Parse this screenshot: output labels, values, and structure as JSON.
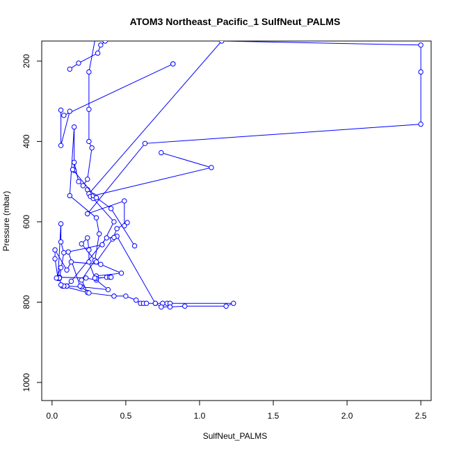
{
  "chart_data": {
    "type": "line",
    "title": "ATOM3 Northeast_Pacific_1 SulfNeut_PALMS",
    "xlabel": "SulfNeut_PALMS",
    "ylabel": "Pressure (mbar)",
    "xlim": [
      -0.07,
      2.57
    ],
    "ylim": [
      1045,
      150
    ],
    "y_reversed": true,
    "grid": false,
    "x_ticks": [
      0.0,
      0.5,
      1.0,
      1.5,
      2.0,
      2.5
    ],
    "x_tick_labels": [
      "0.0",
      "0.5",
      "1.0",
      "1.5",
      "2.0",
      "2.5"
    ],
    "y_ticks": [
      200,
      400,
      600,
      800,
      1000
    ],
    "y_tick_labels": [
      "200",
      "400",
      "600",
      "800",
      "1000"
    ],
    "series_color": "#0000ff",
    "series": [
      {
        "style": "line+open-circle",
        "points": [
          [
            0.3,
            130
          ],
          [
            0.25,
            227
          ],
          [
            0.25,
            320
          ],
          [
            0.25,
            400
          ],
          [
            0.27,
            416
          ],
          [
            0.24,
            494
          ],
          [
            0.21,
            510
          ],
          [
            0.18,
            500
          ],
          [
            0.15,
            452
          ],
          [
            0.15,
            472
          ],
          [
            0.15,
            364
          ],
          [
            0.12,
            535
          ],
          [
            0.3,
            590
          ],
          [
            0.32,
            630
          ],
          [
            0.29,
            696
          ],
          [
            0.2,
            745
          ],
          [
            0.24,
            776
          ],
          [
            0.07,
            760
          ],
          [
            0.1,
            760
          ],
          [
            0.2,
            762
          ],
          [
            0.38,
            769
          ],
          [
            0.3,
            745
          ],
          [
            0.23,
            740
          ],
          [
            0.05,
            738
          ],
          [
            0.05,
            741
          ],
          [
            0.08,
            677
          ],
          [
            0.06,
            650
          ],
          [
            0.06,
            605
          ],
          [
            0.04,
            741
          ],
          [
            0.02,
            692
          ],
          [
            0.02,
            670
          ],
          [
            0.1,
            720
          ],
          [
            0.13,
            700
          ],
          [
            0.33,
            706
          ],
          [
            0.47,
            728
          ],
          [
            0.3,
            735
          ],
          [
            0.3,
            741
          ],
          [
            0.37,
            738
          ],
          [
            0.39,
            738
          ],
          [
            0.4,
            738
          ],
          [
            0.29,
            740
          ],
          [
            0.25,
            700
          ],
          [
            0.25,
            670
          ],
          [
            0.24,
            640
          ],
          [
            0.2,
            655
          ],
          [
            0.3,
            700
          ],
          [
            0.41,
            643
          ],
          [
            0.44,
            617
          ],
          [
            0.51,
            602
          ],
          [
            0.49,
            610
          ],
          [
            0.49,
            548
          ],
          [
            0.24,
            580
          ],
          [
            0.63,
            405
          ],
          [
            2.5,
            357
          ],
          [
            2.5,
            227
          ],
          [
            2.5,
            160
          ],
          [
            1.15,
            150
          ],
          [
            0.25,
            530
          ],
          [
            0.26,
            537
          ],
          [
            0.24,
            520
          ],
          [
            0.28,
            542
          ],
          [
            0.42,
            600
          ],
          [
            0.34,
            657
          ],
          [
            0.11,
            675
          ],
          [
            0.19,
            760
          ],
          [
            0.25,
            777
          ],
          [
            0.42,
            785
          ],
          [
            0.42,
            785
          ],
          [
            0.5,
            785
          ],
          [
            0.57,
            795
          ],
          [
            0.6,
            803
          ],
          [
            0.62,
            803
          ],
          [
            0.64,
            803
          ],
          [
            0.7,
            803
          ],
          [
            0.75,
            803
          ],
          [
            0.78,
            803
          ],
          [
            0.8,
            803
          ],
          [
            1.23,
            803
          ],
          [
            1.18,
            810
          ],
          [
            0.9,
            810
          ],
          [
            0.8,
            812
          ],
          [
            0.74,
            812
          ],
          [
            0.7,
            803
          ],
          [
            0.44,
            636
          ],
          [
            0.42,
            639
          ],
          [
            0.37,
            640
          ],
          [
            0.13,
            748
          ],
          [
            0.1,
            760
          ],
          [
            0.08,
            760
          ],
          [
            0.06,
            757
          ],
          [
            0.05,
            740
          ],
          [
            0.03,
            740
          ],
          [
            0.06,
            714
          ]
        ]
      },
      {
        "style": "line+open-circle",
        "points": [
          [
            0.08,
            335
          ],
          [
            0.82,
            207
          ],
          [
            0.82,
            207
          ]
        ]
      },
      {
        "style": "line+open-circle",
        "points": [
          [
            0.12,
            220
          ],
          [
            0.18,
            205
          ],
          [
            0.31,
            180
          ],
          [
            0.33,
            160
          ],
          [
            0.36,
            150
          ]
        ]
      },
      {
        "style": "line+open-circle",
        "points": [
          [
            0.06,
            322
          ],
          [
            0.06,
            410
          ],
          [
            0.12,
            325
          ]
        ]
      },
      {
        "style": "line+open-circle",
        "points": [
          [
            0.74,
            428
          ],
          [
            1.08,
            465
          ],
          [
            0.28,
            535
          ]
        ]
      },
      {
        "style": "line+open-circle",
        "points": [
          [
            0.56,
            660
          ],
          [
            0.4,
            567
          ],
          [
            0.3,
            540
          ],
          [
            0.14,
            470
          ]
        ]
      }
    ]
  }
}
